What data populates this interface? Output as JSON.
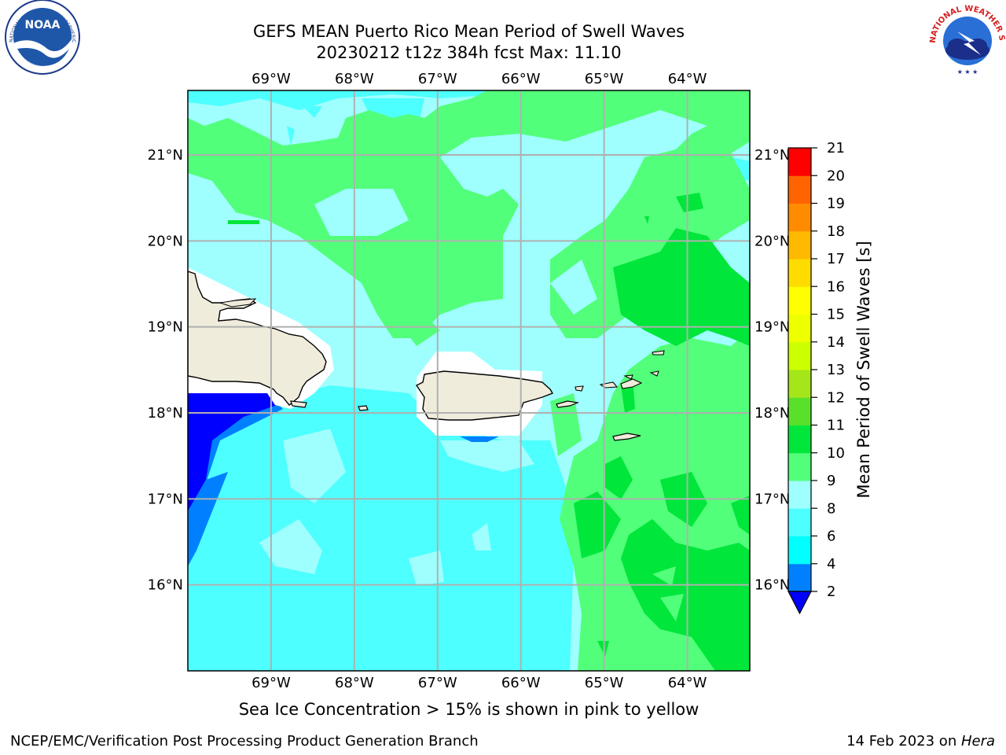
{
  "header": {
    "title_line1": "GEFS MEAN Puerto Rico Mean Period of Swell Waves",
    "title_line2": "20230212 t12z 384h fcst   Max: 11.10"
  },
  "logos": {
    "left": "noaa-logo",
    "right": "nws-logo",
    "left_text": "NOAA",
    "left_ring_text": "NATIONAL OCEANIC AND ATMOSPHERIC ADMINISTRATION · U.S. DEPARTMENT OF COMMERCE",
    "right_ring_text": "NATIONAL WEATHER SERVICE"
  },
  "map": {
    "lon_labels": [
      "69°W",
      "68°W",
      "67°W",
      "66°W",
      "65°W",
      "64°W"
    ],
    "lat_labels": [
      "21°N",
      "20°N",
      "19°N",
      "18°N",
      "17°N",
      "16°N"
    ],
    "lon_values": [
      -69,
      -68,
      -67,
      -66,
      -65,
      -64
    ],
    "lat_values": [
      21,
      20,
      19,
      18,
      17,
      16
    ],
    "lon_range": [
      -70,
      -63.25
    ],
    "lat_range": [
      15,
      21.75
    ],
    "colors": {
      "land": "#efecdc",
      "grid": "#b0b0b0",
      "level_4_6": "#00ffff",
      "level_6_8": "#4dffff",
      "level_8_9": "#9fffff",
      "level_9_10": "#52ff7a",
      "level_10_11": "#00e63a",
      "level_2_4": "#0080ff",
      "level_lt2": "#0000ff"
    }
  },
  "colorbar": {
    "label": "Mean Period of Swell Waves [s]",
    "ticks": [
      "2",
      "4",
      "6",
      "8",
      "9",
      "10",
      "11",
      "12",
      "13",
      "14",
      "15",
      "16",
      "17",
      "18",
      "19",
      "20",
      "21"
    ],
    "colors": [
      "#0080ff",
      "#00ffff",
      "#4dffff",
      "#9fffff",
      "#52ff7a",
      "#00e63a",
      "#59e02a",
      "#a4e61a",
      "#ccff00",
      "#eeff00",
      "#ffff00",
      "#ffdc00",
      "#ffb900",
      "#ff8c00",
      "#ff6400",
      "#ff3c00"
    ],
    "under_color": "#0000ff",
    "top_color": "#ff0000"
  },
  "caption": "Sea Ice Concentration > 15% is shown in pink to yellow",
  "footer": {
    "left": "NCEP/EMC/Verification Post Processing Product Generation Branch",
    "right_prefix": "14 Feb 2023 on ",
    "right_host": "Hera"
  }
}
